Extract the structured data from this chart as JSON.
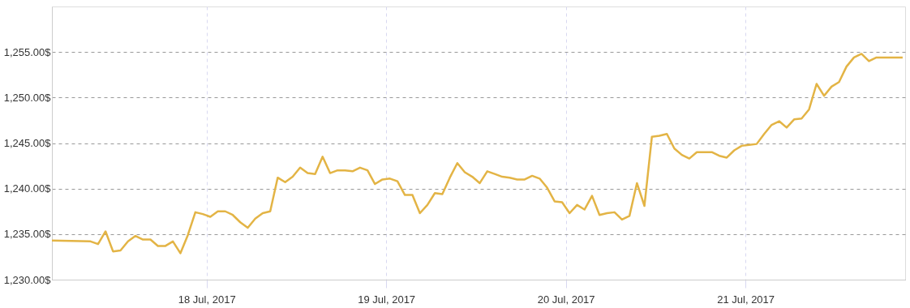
{
  "chart_data": {
    "type": "line",
    "xlim": [
      "2017-07-17T03:20",
      "2017-07-21T21:20"
    ],
    "ylim": [
      1230,
      1260
    ],
    "xticks": [
      {
        "value": "2017-07-18",
        "label": "18 Jul, 2017"
      },
      {
        "value": "2017-07-19",
        "label": "19 Jul, 2017"
      },
      {
        "value": "2017-07-20",
        "label": "20 Jul, 2017"
      },
      {
        "value": "2017-07-21",
        "label": "21 Jul, 2017"
      }
    ],
    "yticks": [
      {
        "value": 1230,
        "label": "1,230.00$"
      },
      {
        "value": 1235,
        "label": "1,235.00$"
      },
      {
        "value": 1240,
        "label": "1,240.00$"
      },
      {
        "value": 1245,
        "label": "1,245.00$"
      },
      {
        "value": 1250,
        "label": "1,250.00$"
      },
      {
        "value": 1255,
        "label": "1,255.00$"
      }
    ],
    "grid": true,
    "legend": false,
    "marker": "none",
    "line_style": "solid",
    "x": [
      "2017-07-17T03:20",
      "2017-07-17T08:30",
      "2017-07-17T09:30",
      "2017-07-17T10:30",
      "2017-07-17T11:30",
      "2017-07-17T12:30",
      "2017-07-17T13:30",
      "2017-07-17T14:30",
      "2017-07-17T15:30",
      "2017-07-17T16:30",
      "2017-07-17T17:30",
      "2017-07-17T18:30",
      "2017-07-17T19:30",
      "2017-07-17T20:30",
      "2017-07-17T21:30",
      "2017-07-17T22:30",
      "2017-07-17T23:30",
      "2017-07-18T00:30",
      "2017-07-18T01:30",
      "2017-07-18T02:30",
      "2017-07-18T03:30",
      "2017-07-18T04:30",
      "2017-07-18T05:30",
      "2017-07-18T06:30",
      "2017-07-18T07:30",
      "2017-07-18T08:30",
      "2017-07-18T09:30",
      "2017-07-18T10:30",
      "2017-07-18T11:30",
      "2017-07-18T12:30",
      "2017-07-18T13:30",
      "2017-07-18T14:30",
      "2017-07-18T15:30",
      "2017-07-18T16:30",
      "2017-07-18T17:30",
      "2017-07-18T18:30",
      "2017-07-18T19:30",
      "2017-07-18T20:30",
      "2017-07-18T21:30",
      "2017-07-18T22:30",
      "2017-07-18T23:30",
      "2017-07-19T00:30",
      "2017-07-19T01:30",
      "2017-07-19T02:30",
      "2017-07-19T03:30",
      "2017-07-19T04:30",
      "2017-07-19T05:30",
      "2017-07-19T06:30",
      "2017-07-19T07:30",
      "2017-07-19T08:30",
      "2017-07-19T09:30",
      "2017-07-19T10:30",
      "2017-07-19T11:30",
      "2017-07-19T12:30",
      "2017-07-19T13:30",
      "2017-07-19T14:30",
      "2017-07-19T15:30",
      "2017-07-19T16:30",
      "2017-07-19T17:30",
      "2017-07-19T18:30",
      "2017-07-19T19:30",
      "2017-07-19T20:30",
      "2017-07-19T21:30",
      "2017-07-19T22:30",
      "2017-07-19T23:30",
      "2017-07-20T00:30",
      "2017-07-20T01:30",
      "2017-07-20T02:30",
      "2017-07-20T03:30",
      "2017-07-20T04:30",
      "2017-07-20T05:30",
      "2017-07-20T06:30",
      "2017-07-20T07:30",
      "2017-07-20T08:30",
      "2017-07-20T09:30",
      "2017-07-20T10:30",
      "2017-07-20T11:30",
      "2017-07-20T12:30",
      "2017-07-20T13:30",
      "2017-07-20T14:30",
      "2017-07-20T15:30",
      "2017-07-20T16:30",
      "2017-07-20T17:30",
      "2017-07-20T18:30",
      "2017-07-20T19:30",
      "2017-07-20T20:30",
      "2017-07-20T21:30",
      "2017-07-20T22:30",
      "2017-07-20T23:30",
      "2017-07-21T00:30",
      "2017-07-21T01:30",
      "2017-07-21T02:30",
      "2017-07-21T03:30",
      "2017-07-21T04:30",
      "2017-07-21T05:30",
      "2017-07-21T06:30",
      "2017-07-21T07:30",
      "2017-07-21T08:30",
      "2017-07-21T09:30",
      "2017-07-21T10:30",
      "2017-07-21T11:30",
      "2017-07-21T12:30",
      "2017-07-21T13:30",
      "2017-07-21T14:30",
      "2017-07-21T15:30",
      "2017-07-21T16:30",
      "2017-07-21T17:30",
      "2017-07-21T21:00"
    ],
    "series": [
      {
        "color": "#e3b445",
        "values": [
          1234.3,
          1234.2,
          1233.9,
          1235.3,
          1233.1,
          1233.2,
          1234.2,
          1234.8,
          1234.4,
          1234.4,
          1233.7,
          1233.7,
          1234.2,
          1232.9,
          1234.9,
          1237.4,
          1237.2,
          1236.9,
          1237.5,
          1237.5,
          1237.1,
          1236.3,
          1235.7,
          1236.7,
          1237.3,
          1237.5,
          1241.2,
          1240.7,
          1241.3,
          1242.3,
          1241.7,
          1241.6,
          1243.5,
          1241.7,
          1242.0,
          1242.0,
          1241.9,
          1242.3,
          1242.0,
          1240.5,
          1241.0,
          1241.1,
          1240.8,
          1239.3,
          1239.3,
          1237.3,
          1238.2,
          1239.5,
          1239.4,
          1241.2,
          1242.8,
          1241.8,
          1241.3,
          1240.6,
          1241.9,
          1241.6,
          1241.3,
          1241.2,
          1241.0,
          1241.0,
          1241.4,
          1241.1,
          1240.1,
          1238.6,
          1238.5,
          1237.3,
          1238.2,
          1237.7,
          1239.2,
          1237.1,
          1237.3,
          1237.4,
          1236.6,
          1237.0,
          1240.6,
          1238.1,
          1245.7,
          1245.8,
          1246.0,
          1244.4,
          1243.7,
          1243.3,
          1244.0,
          1244.0,
          1244.0,
          1243.6,
          1243.4,
          1244.2,
          1244.7,
          1244.8,
          1244.9,
          1246.0,
          1247.0,
          1247.4,
          1246.7,
          1247.6,
          1247.7,
          1248.7,
          1251.5,
          1250.2,
          1251.2,
          1251.7,
          1253.4,
          1254.4,
          1254.8,
          1254.0,
          1254.4,
          1254.4
        ]
      }
    ]
  }
}
